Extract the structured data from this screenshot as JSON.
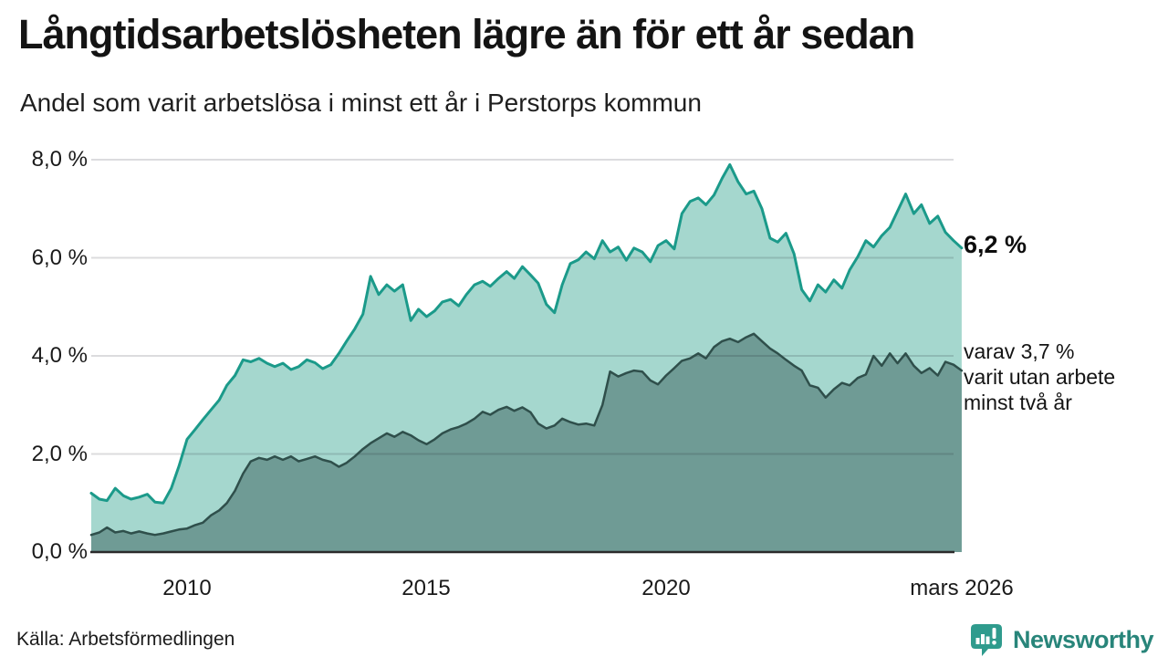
{
  "header": {
    "title": "Långtidsarbetslösheten lägre än för ett år sedan",
    "subtitle": "Andel som varit arbetslösa i minst ett år i Perstorps kommun"
  },
  "annotations": {
    "latest_value": "6,2 %",
    "two_year_note": "varav 3,7 %\nvarit utan arbete\nminst två år"
  },
  "footer": {
    "source": "Källa: Arbetsförmedlingen",
    "brand": "Newsworthy"
  },
  "colors": {
    "one_year_line": "#1b9a8a",
    "one_year_fill": "#a5d7ce",
    "two_year_line": "#2f4f4b",
    "two_year_fill": "#6f9b95",
    "gridline": "rgba(17,17,34,0.15)",
    "axis_line": "#2b2b2b",
    "brand_icon": "#2f9b8d",
    "brand_text": "#28857a"
  },
  "chart_data": {
    "type": "area",
    "title": "Långtidsarbetslösheten lägre än för ett år sedan",
    "subtitle": "Andel som varit arbetslösa i minst ett år i Perstorps kommun",
    "unit": "%",
    "grid": true,
    "x_axis": {
      "range": [
        2008,
        2026.17
      ],
      "ticks": [
        {
          "value": 2010,
          "label": "2010"
        },
        {
          "value": 2015,
          "label": "2015"
        },
        {
          "value": 2020,
          "label": "2020"
        },
        {
          "value": 2026.17,
          "label": "mars 2026"
        }
      ]
    },
    "y_axis": {
      "range": [
        0,
        8.6
      ],
      "ticks": [
        {
          "value": 0,
          "label": "0,0 %"
        },
        {
          "value": 2,
          "label": "2,0 %"
        },
        {
          "value": 4,
          "label": "4,0 %"
        },
        {
          "value": 6,
          "label": "6,0 %"
        },
        {
          "value": 8,
          "label": "8,0 %"
        }
      ]
    },
    "x": [
      2008,
      2008.17,
      2008.33,
      2008.5,
      2008.67,
      2008.83,
      2009,
      2009.17,
      2009.33,
      2009.5,
      2009.67,
      2009.83,
      2010,
      2010.17,
      2010.33,
      2010.5,
      2010.67,
      2010.83,
      2011,
      2011.17,
      2011.33,
      2011.5,
      2011.67,
      2011.83,
      2012,
      2012.17,
      2012.33,
      2012.5,
      2012.67,
      2012.83,
      2013,
      2013.17,
      2013.33,
      2013.5,
      2013.67,
      2013.83,
      2014,
      2014.17,
      2014.33,
      2014.5,
      2014.67,
      2014.83,
      2015,
      2015.17,
      2015.33,
      2015.5,
      2015.67,
      2015.83,
      2016,
      2016.17,
      2016.33,
      2016.5,
      2016.67,
      2016.83,
      2017,
      2017.17,
      2017.33,
      2017.5,
      2017.67,
      2017.83,
      2018,
      2018.17,
      2018.33,
      2018.5,
      2018.67,
      2018.83,
      2019,
      2019.17,
      2019.33,
      2019.5,
      2019.67,
      2019.83,
      2020,
      2020.17,
      2020.33,
      2020.5,
      2020.67,
      2020.83,
      2021,
      2021.17,
      2021.33,
      2021.5,
      2021.67,
      2021.83,
      2022,
      2022.17,
      2022.33,
      2022.5,
      2022.67,
      2022.83,
      2023,
      2023.17,
      2023.33,
      2023.5,
      2023.67,
      2023.83,
      2024,
      2024.17,
      2024.33,
      2024.5,
      2024.67,
      2024.83,
      2025,
      2025.17,
      2025.33,
      2025.5,
      2025.67,
      2025.83,
      2026,
      2026.17
    ],
    "series": [
      {
        "id": "minst-ett-ar",
        "name": "Arbetslösa minst ett år",
        "latest_label": "6,2 %",
        "line_color": "#1b9a8a",
        "fill_color": "#a5d7ce",
        "values": [
          1.2,
          1.08,
          1.05,
          1.3,
          1.15,
          1.08,
          1.12,
          1.18,
          1.02,
          1.0,
          1.3,
          1.75,
          2.3,
          2.5,
          2.7,
          2.9,
          3.1,
          3.4,
          3.6,
          3.92,
          3.88,
          3.95,
          3.85,
          3.78,
          3.85,
          3.72,
          3.78,
          3.92,
          3.86,
          3.74,
          3.82,
          4.05,
          4.3,
          4.55,
          4.85,
          5.62,
          5.25,
          5.45,
          5.32,
          5.45,
          4.72,
          4.95,
          4.8,
          4.92,
          5.1,
          5.15,
          5.02,
          5.25,
          5.45,
          5.52,
          5.42,
          5.58,
          5.72,
          5.58,
          5.82,
          5.65,
          5.48,
          5.05,
          4.88,
          5.45,
          5.88,
          5.96,
          6.12,
          5.98,
          6.35,
          6.12,
          6.22,
          5.95,
          6.2,
          6.12,
          5.92,
          6.25,
          6.35,
          6.18,
          6.9,
          7.15,
          7.22,
          7.08,
          7.28,
          7.62,
          7.9,
          7.55,
          7.3,
          7.36,
          7.0,
          6.4,
          6.32,
          6.5,
          6.08,
          5.35,
          5.12,
          5.45,
          5.3,
          5.55,
          5.38,
          5.75,
          6.02,
          6.35,
          6.22,
          6.45,
          6.62,
          6.95,
          7.3,
          6.9,
          7.08,
          6.7,
          6.85,
          6.52,
          6.35,
          6.2
        ]
      },
      {
        "id": "minst-tva-ar",
        "name": "Arbetslösa minst två år",
        "latest_label": "3,7 %",
        "line_color": "#2f4f4b",
        "fill_color": "#6f9b95",
        "values": [
          0.35,
          0.4,
          0.5,
          0.4,
          0.43,
          0.38,
          0.42,
          0.38,
          0.35,
          0.38,
          0.42,
          0.46,
          0.48,
          0.55,
          0.6,
          0.75,
          0.85,
          1.0,
          1.25,
          1.6,
          1.85,
          1.92,
          1.88,
          1.95,
          1.88,
          1.95,
          1.85,
          1.9,
          1.95,
          1.88,
          1.84,
          1.74,
          1.82,
          1.95,
          2.1,
          2.22,
          2.32,
          2.42,
          2.35,
          2.45,
          2.38,
          2.28,
          2.2,
          2.3,
          2.42,
          2.5,
          2.55,
          2.62,
          2.72,
          2.86,
          2.8,
          2.9,
          2.96,
          2.88,
          2.95,
          2.85,
          2.62,
          2.52,
          2.58,
          2.72,
          2.65,
          2.6,
          2.62,
          2.58,
          3.0,
          3.68,
          3.58,
          3.65,
          3.7,
          3.68,
          3.5,
          3.42,
          3.6,
          3.75,
          3.9,
          3.95,
          4.05,
          3.95,
          4.18,
          4.3,
          4.35,
          4.28,
          4.38,
          4.45,
          4.3,
          4.15,
          4.05,
          3.92,
          3.8,
          3.7,
          3.4,
          3.35,
          3.15,
          3.32,
          3.45,
          3.4,
          3.55,
          3.62,
          4.0,
          3.8,
          4.05,
          3.85,
          4.05,
          3.8,
          3.65,
          3.75,
          3.6,
          3.88,
          3.82,
          3.7
        ]
      }
    ],
    "legend_position": "right-annotations"
  }
}
